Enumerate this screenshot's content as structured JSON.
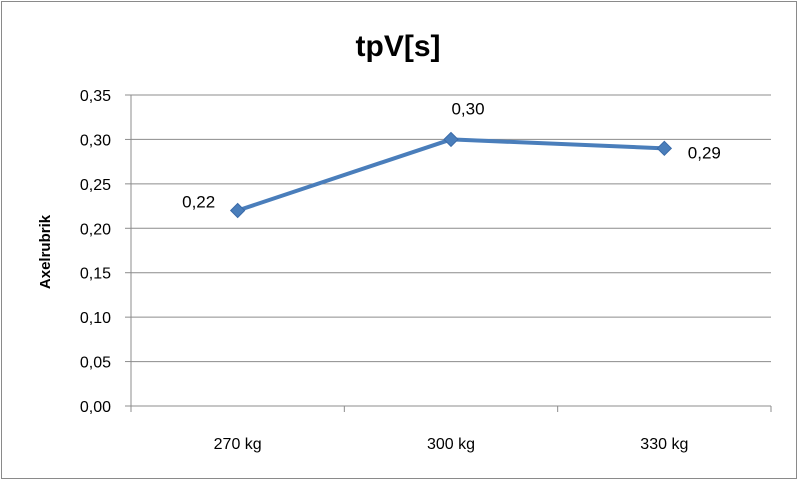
{
  "chart_data": {
    "type": "line",
    "title": "tpV[s]",
    "xlabel": "",
    "ylabel": "Axelrubrik",
    "categories": [
      "270 kg",
      "300 kg",
      "330 kg"
    ],
    "values": [
      0.22,
      0.3,
      0.29
    ],
    "data_labels": [
      "0,22",
      "0,30",
      "0,29"
    ],
    "ylim": [
      0,
      0.35
    ],
    "y_ticks": [
      "0,00",
      "0,05",
      "0,10",
      "0,15",
      "0,20",
      "0,25",
      "0,30",
      "0,35"
    ],
    "grid": true,
    "legend": "none",
    "colors": {
      "line": "#4a7ebb",
      "grid": "#8c8c8c",
      "axis": "#8c8c8c"
    }
  }
}
